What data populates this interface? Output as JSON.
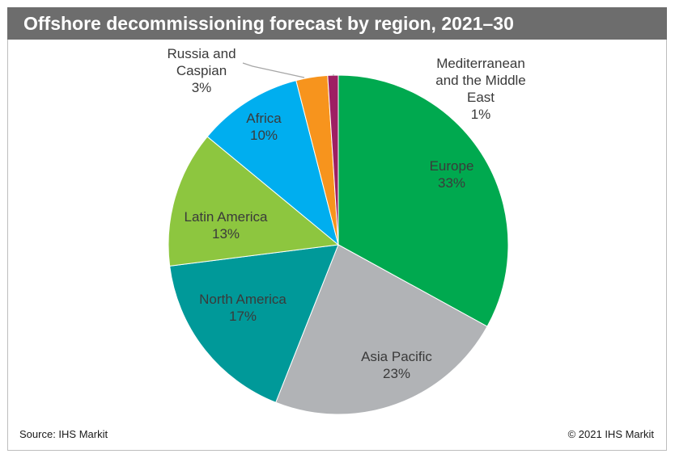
{
  "title": "Offshore decommissioning forecast by region, 2021–30",
  "footer": {
    "source": "Source: IHS Markit",
    "copyright": "© 2021 IHS Markit"
  },
  "chart_data": {
    "type": "pie",
    "title": "Offshore decommissioning forecast by region, 2021–30",
    "unit": "%",
    "slices": [
      {
        "label": "Europe",
        "value": 33,
        "value_label": "33%",
        "color": "#00a94f"
      },
      {
        "label": "Asia Pacific",
        "value": 23,
        "value_label": "23%",
        "color": "#b1b3b6"
      },
      {
        "label": "North America",
        "value": 17,
        "value_label": "17%",
        "color": "#009999"
      },
      {
        "label": "Latin America",
        "value": 13,
        "value_label": "13%",
        "color": "#8dc63f"
      },
      {
        "label": "Africa",
        "value": 10,
        "value_label": "10%",
        "color": "#00aeef"
      },
      {
        "label": "Russia and Caspian",
        "value": 3,
        "value_label": "3%",
        "color": "#f7941d"
      },
      {
        "label": "Mediterranean and the Middle East",
        "value": 1,
        "value_label": "1%",
        "color": "#9e1f63"
      }
    ]
  }
}
